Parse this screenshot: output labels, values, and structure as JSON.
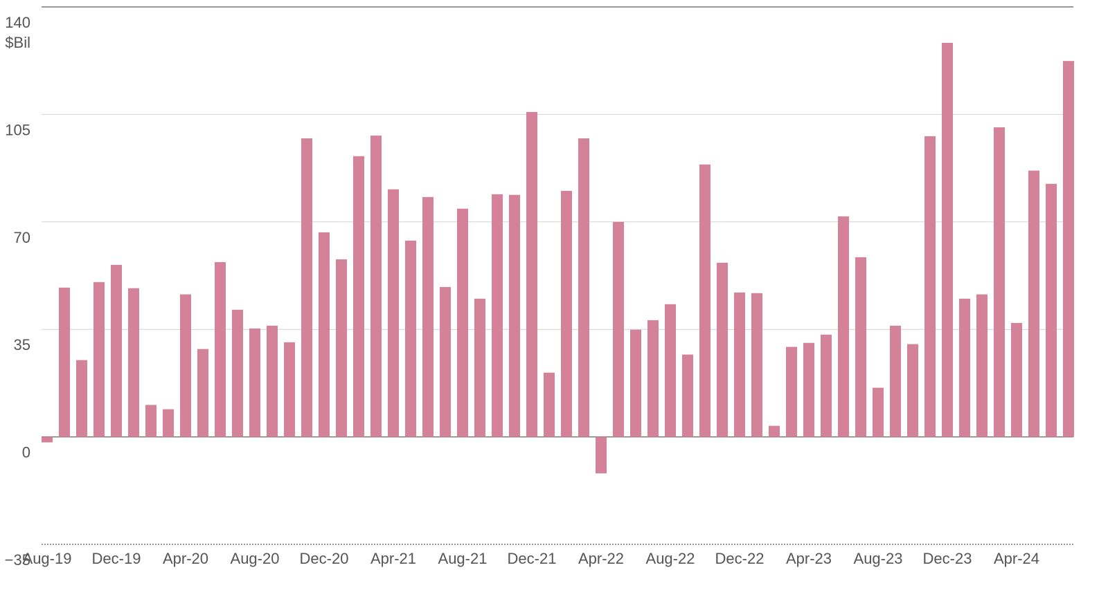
{
  "chart_data": {
    "type": "bar",
    "y_unit": "$Bil",
    "categories": [
      "Aug-19",
      null,
      null,
      null,
      "Dec-19",
      null,
      null,
      null,
      "Apr-20",
      null,
      null,
      null,
      "Aug-20",
      null,
      null,
      null,
      "Dec-20",
      null,
      null,
      null,
      "Apr-21",
      null,
      null,
      null,
      "Aug-21",
      null,
      null,
      null,
      "Dec-21",
      null,
      null,
      null,
      "Apr-22",
      null,
      null,
      null,
      "Aug-22",
      null,
      null,
      null,
      "Dec-22",
      null,
      null,
      null,
      "Apr-23",
      null,
      null,
      null,
      "Aug-23",
      null,
      null,
      null,
      "Dec-23",
      null,
      null,
      null,
      "Apr-24",
      null,
      null,
      null
    ],
    "values": [
      -1.8,
      48.6,
      25.0,
      50.4,
      56.0,
      48.4,
      10.4,
      9.0,
      46.4,
      28.6,
      56.9,
      41.4,
      35.3,
      36.2,
      30.8,
      97.2,
      66.6,
      57.8,
      91.4,
      98.1,
      80.6,
      63.9,
      78.1,
      48.8,
      74.3,
      45.0,
      79.0,
      78.8,
      105.8,
      20.9,
      80.1,
      97.2,
      -11.9,
      70.0,
      34.9,
      38.0,
      43.2,
      26.8,
      88.7,
      56.7,
      47.0,
      46.8,
      3.6,
      29.3,
      30.6,
      33.3,
      71.8,
      58.5,
      16.0,
      36.2,
      30.2,
      97.9,
      128.3,
      45.0,
      46.4,
      100.8,
      37.1,
      86.7,
      82.4,
      122.4
    ],
    "color": "#d4829a",
    "ylim": [
      -35,
      140
    ],
    "yticks": [
      {
        "value": -35,
        "label": "−35"
      },
      0,
      35,
      70,
      105,
      140
    ],
    "grid": true
  }
}
